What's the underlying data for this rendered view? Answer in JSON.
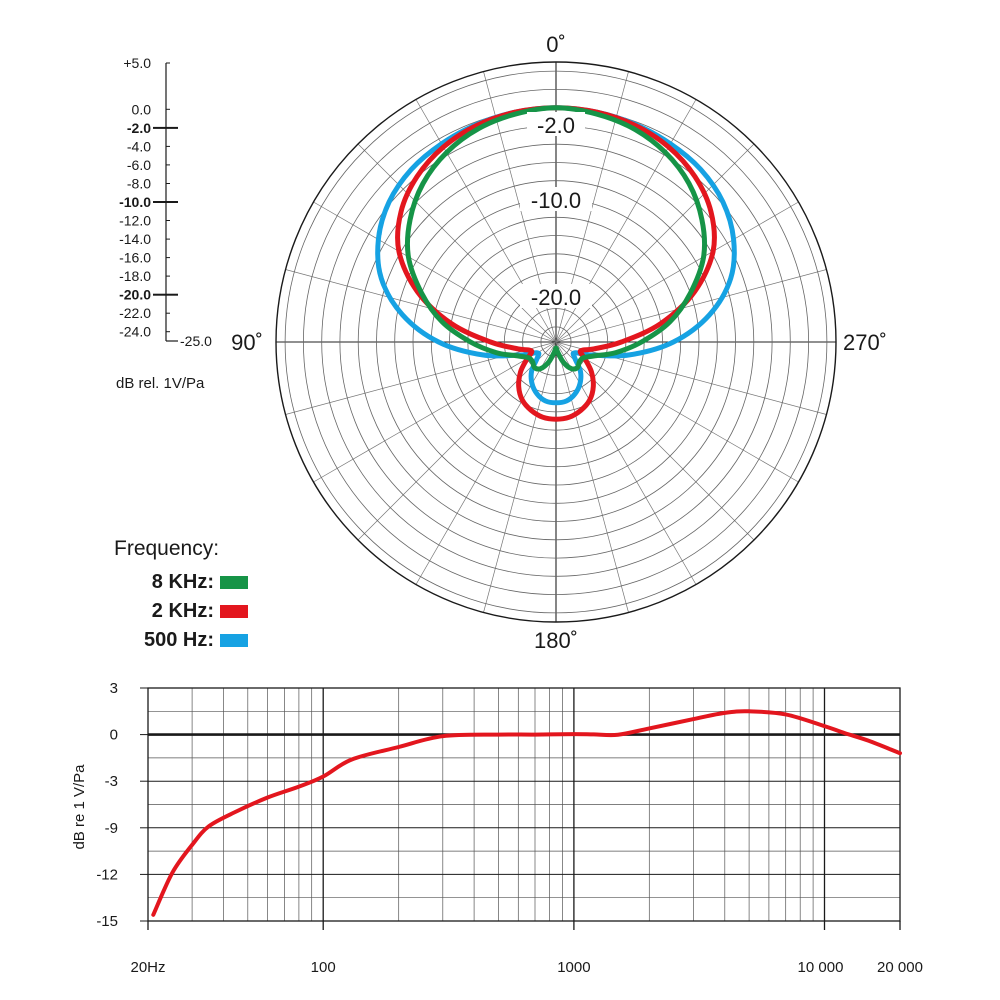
{
  "polar_chart": {
    "scale": {
      "ticks": [
        "+5.0",
        "0.0",
        "-2.0",
        "-4.0",
        "-6.0",
        "-8.0",
        "-10.0",
        "-12.0",
        "-14.0",
        "-16.0",
        "-18.0",
        "-20.0",
        "-22.0",
        "-24.0",
        "-25.0"
      ],
      "major_ticks": [
        "-2.0",
        "-10.0",
        "-20.0"
      ],
      "unit_label": "dB rel. 1V/Pa"
    },
    "angle_labels": {
      "top": "0˚",
      "left": "90˚",
      "right": "270˚",
      "bottom": "180˚"
    },
    "ring_labels": [
      "-2.0",
      "-10.0",
      "-20.0"
    ],
    "legend": {
      "title": "Frequency:",
      "entries": [
        {
          "label": "8 KHz:",
          "color": "#169447"
        },
        {
          "label": "2 KHz:",
          "color": "#e3161e"
        },
        {
          "label": "500 Hz:",
          "color": "#16a2e3"
        }
      ]
    }
  },
  "frequency_chart": {
    "ylabel": "dB re 1 V/Pa",
    "y_tick_labels": [
      "3",
      "0",
      "-3",
      "-9",
      "-12",
      "-15"
    ],
    "x_tick_labels": [
      "20Hz",
      "100",
      "1000",
      "10 000",
      "20 000"
    ],
    "line_color": "#e3161e"
  },
  "chart_data": [
    {
      "type": "polar",
      "angle_unit": "degrees",
      "r_unit": "dB",
      "rlim": [
        -25,
        5
      ],
      "series": [
        {
          "name": "8 KHz",
          "angles": [
            0,
            10,
            20,
            30,
            40,
            50,
            60,
            70,
            80,
            90,
            100,
            110,
            120,
            130,
            140,
            150,
            160,
            170,
            180,
            190,
            200,
            210,
            220,
            230,
            240,
            250,
            260,
            270,
            280,
            290,
            300,
            310,
            320,
            330,
            340,
            350,
            360
          ],
          "values": [
            0,
            -0.3,
            -0.8,
            -1.7,
            -3,
            -4.8,
            -7,
            -10,
            -13,
            -16.3,
            -19,
            -21.2,
            -22.2,
            -22.3,
            -22,
            -22.3,
            -23.3,
            -24.5,
            -25,
            -24.5,
            -23.3,
            -22.3,
            -22,
            -22.3,
            -22.2,
            -21.2,
            -19,
            -16.3,
            -13,
            -10,
            -7,
            -4.8,
            -3,
            -1.7,
            -0.8,
            -0.3,
            0
          ]
        },
        {
          "name": "2 KHz",
          "angles": [
            0,
            10,
            20,
            30,
            40,
            50,
            60,
            70,
            80,
            90,
            100,
            110,
            120,
            130,
            140,
            150,
            160,
            170,
            180,
            190,
            200,
            210,
            220,
            230,
            240,
            250,
            260,
            270,
            280,
            290,
            300,
            310,
            320,
            330,
            340,
            350,
            360
          ],
          "values": [
            0,
            -0.1,
            -0.4,
            -1,
            -2,
            -3.5,
            -5.8,
            -9.5,
            -14,
            -18.5,
            -21.4,
            -22.8,
            -22,
            -20.6,
            -19.3,
            -18.3,
            -17.7,
            -17.3,
            -17.2,
            -17.3,
            -17.7,
            -18.3,
            -19.3,
            -20.6,
            -22,
            -22.8,
            -21.4,
            -18.5,
            -14,
            -9.5,
            -5.8,
            -3.5,
            -2,
            -1,
            -0.4,
            -0.1,
            0
          ]
        },
        {
          "name": "500 Hz",
          "angles": [
            0,
            10,
            20,
            30,
            40,
            50,
            60,
            70,
            80,
            90,
            100,
            110,
            120,
            130,
            140,
            150,
            160,
            170,
            180,
            190,
            200,
            210,
            220,
            230,
            240,
            250,
            260,
            270,
            280,
            290,
            300,
            310,
            320,
            330,
            340,
            350,
            360
          ],
          "values": [
            0,
            -0.1,
            -0.3,
            -0.6,
            -1,
            -1.8,
            -3.2,
            -5.3,
            -8.6,
            -12.8,
            -17.5,
            -21.5,
            -23.3,
            -23,
            -21.5,
            -20.4,
            -19.6,
            -19.1,
            -19,
            -19.1,
            -19.6,
            -20.4,
            -21.5,
            -23,
            -23.3,
            -21.5,
            -17.5,
            -12.8,
            -8.6,
            -5.3,
            -3.2,
            -1.8,
            -1,
            -0.6,
            -0.3,
            -0.1,
            0
          ]
        }
      ]
    },
    {
      "type": "line",
      "x_scale": "log",
      "xlim": [
        20,
        20000
      ],
      "ylim": [
        -15,
        3
      ],
      "x": [
        21,
        25,
        30,
        35,
        45,
        60,
        80,
        100,
        130,
        200,
        300,
        500,
        700,
        1000,
        1200,
        1500,
        2000,
        3000,
        4000,
        5000,
        7000,
        10000,
        12000,
        15000,
        20000
      ],
      "series": [
        {
          "values": [
            -14.6,
            -11.9,
            -10.1,
            -8.8,
            -6.9,
            -5.1,
            -3.7,
            -2.7,
            -1.6,
            -0.8,
            -0.1,
            0,
            0,
            0.03,
            0.01,
            -0.01,
            0.4,
            1.0,
            1.4,
            1.5,
            1.3,
            0.55,
            0.1,
            -0.4,
            -1.2
          ]
        }
      ]
    }
  ]
}
